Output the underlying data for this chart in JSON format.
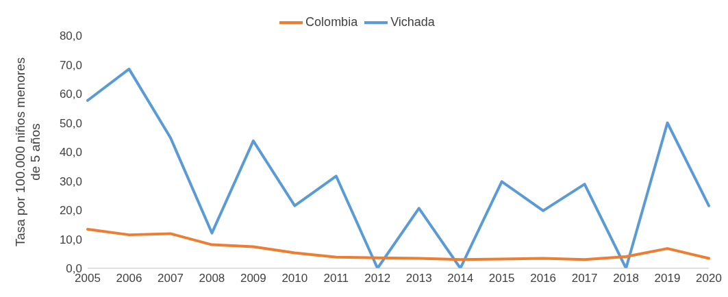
{
  "chart_data": {
    "type": "line",
    "ylabel": "Tasa por 100.000 niños menores de 5 años",
    "categories": [
      "2005",
      "2006",
      "2007",
      "2008",
      "2009",
      "2010",
      "2011",
      "2012",
      "2013",
      "2014",
      "2015",
      "2016",
      "2017",
      "2018",
      "2019",
      "2020"
    ],
    "series": [
      {
        "name": "Vichada",
        "color": "#5b9bd5",
        "values": [
          57.7,
          68.5,
          44.9,
          12.1,
          43.8,
          21.5,
          31.7,
          0,
          20.6,
          0,
          29.8,
          19.8,
          28.9,
          0,
          50.0,
          21.5
        ]
      },
      {
        "name": "Colombia",
        "color": "#ed7d31",
        "values": [
          13.4,
          11.5,
          11.9,
          8.1,
          7.4,
          5.3,
          3.8,
          3.6,
          3.4,
          3.0,
          3.2,
          3.4,
          3.0,
          4.0,
          6.8,
          3.4
        ]
      }
    ],
    "ylim": [
      0,
      80
    ],
    "yticks": [
      {
        "value": 0,
        "label": "0,0"
      },
      {
        "value": 10,
        "label": "10,0"
      },
      {
        "value": 20,
        "label": "20,0"
      },
      {
        "value": 30,
        "label": "30,0"
      },
      {
        "value": 40,
        "label": "40,0"
      },
      {
        "value": 50,
        "label": "50,0"
      },
      {
        "value": 60,
        "label": "60,0"
      },
      {
        "value": 70,
        "label": "70,0"
      },
      {
        "value": 80,
        "label": "80,0"
      }
    ],
    "grid": false,
    "legend": "top",
    "marker": "none",
    "line_style": "solid"
  }
}
